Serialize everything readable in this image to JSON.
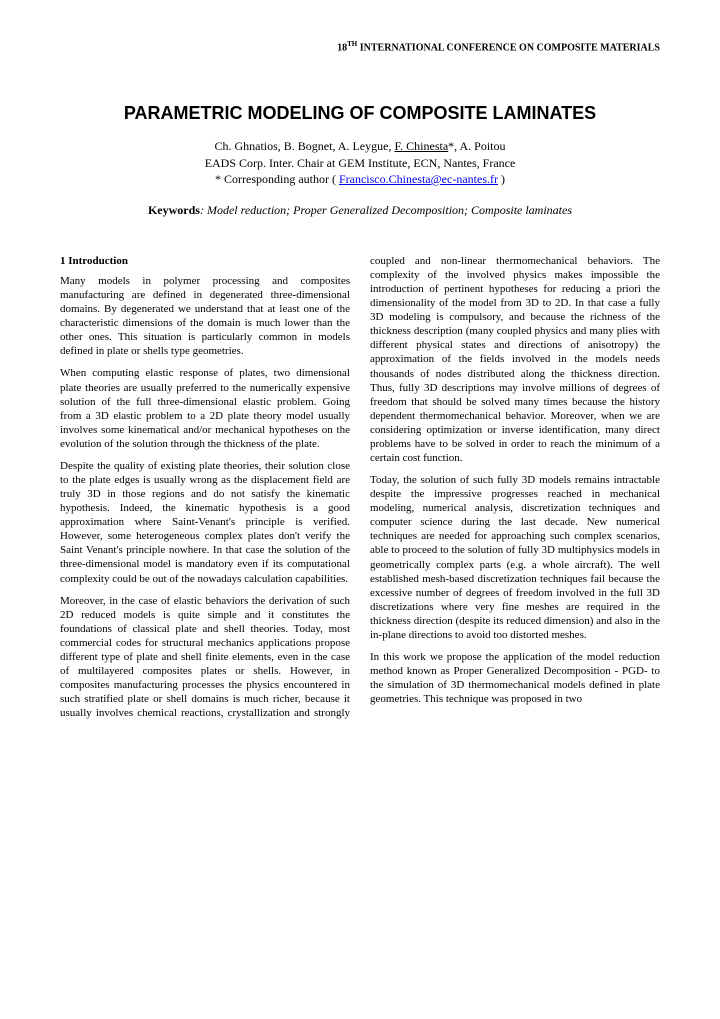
{
  "conference_header_pre": "18",
  "conference_header_sup": "TH",
  "conference_header_post": " INTERNATIONAL CONFERENCE ON COMPOSITE MATERIALS",
  "title": "PARAMETRIC MODELING OF COMPOSITE LAMINATES",
  "authors_line1_pre": "Ch. Ghnatios, B. Bognet, A. Leygue, ",
  "authors_line1_underlined": "F. Chinesta",
  "authors_line1_post": "*, A. Poitou",
  "authors_line2": "EADS Corp. Inter. Chair at GEM Institute, ECN, Nantes, France",
  "authors_line3_pre": "* Corresponding author ( ",
  "authors_email": "Francisco.Chinesta@ec-nantes.fr",
  "authors_line3_post": " )",
  "keywords_label": "Keywords",
  "keywords_text": ": Model reduction; Proper Generalized Decomposition; Composite laminates",
  "section1_head": "1  Introduction",
  "p1": "Many models in polymer processing and composites manufacturing are defined in degenerated three-dimensional domains. By degenerated we understand that at least one of the characteristic dimensions of the domain is much lower than the other ones. This situation is particularly common in models defined in plate or shells type geometries.",
  "p2": "When computing elastic response of plates, two dimensional plate theories are usually preferred to the numerically expensive solution of the full three-dimensional elastic problem. Going from a 3D elastic problem to a 2D plate theory model usually involves some kinematical and/or mechanical hypotheses on the evolution of the solution through the thickness of the plate.",
  "p3": "Despite the quality of existing plate theories, their solution close to the plate edges is usually wrong as the displacement field are truly 3D in those regions and do not satisfy the kinematic hypothesis. Indeed, the kinematic hypothesis is a good approximation where Saint-Venant's principle is verified. However, some heterogeneous complex plates don't verify the Saint Venant's principle nowhere. In that case the solution of the three-dimensional model is mandatory even if its computational complexity could be out of the nowadays calculation capabilities.",
  "p4": "Moreover, in the case of elastic behaviors the derivation of such 2D reduced models is quite simple and it constitutes the foundations of classical plate and shell theories. Today, most commercial codes for structural mechanics applications propose different type of plate and shell finite elements, even in the case of multilayered composites plates or shells. However, in composites manufacturing processes the physics encountered in such stratified plate or shell domains is much richer, because it usually involves chemical reactions, crystallization and strongly coupled and non-linear thermomechanical behaviors. The complexity of the involved physics makes impossible the introduction of pertinent hypotheses for reducing a priori the dimensionality of the model from 3D to 2D. In that case a fully 3D modeling is compulsory, and because the richness of the thickness description (many coupled physics and many plies with different physical states and directions of anisotropy) the approximation of the fields involved in the models needs thousands of nodes distributed along the thickness direction. Thus, fully 3D descriptions may involve millions of degrees of freedom that should be solved many times because the history dependent thermomechanical behavior. Moreover, when we are considering optimization or inverse identification, many direct problems have to be solved in order to reach the minimum of a certain cost function.",
  "p5": "Today, the solution of such fully 3D models remains intractable despite the impressive progresses reached in mechanical modeling, numerical analysis, discretization techniques and computer science during the last decade. New numerical techniques are needed for approaching such complex scenarios, able to proceed to the solution of fully 3D multiphysics models in geometrically complex parts (e.g. a whole aircraft). The well established mesh-based discretization techniques fail because the excessive number of degrees of freedom involved in the full 3D discretizations where very fine meshes are required in the thickness direction (despite its reduced dimension) and also in the in-plane directions to avoid too distorted meshes.",
  "p6": "In this work we propose the application of the model reduction method known as Proper Generalized Decomposition - PGD- to the simulation of 3D thermomechanical models defined in plate geometries. This technique was proposed in two"
}
